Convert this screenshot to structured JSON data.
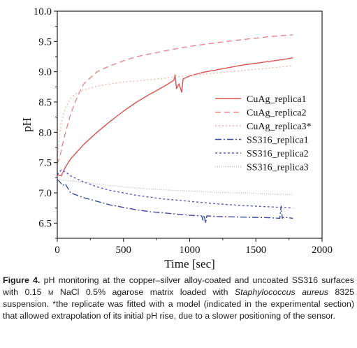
{
  "chart_data": {
    "type": "line",
    "xlabel": "Time [sec]",
    "ylabel": "pH",
    "xlim": [
      0,
      2000
    ],
    "ylim": [
      6.25,
      10.0
    ],
    "xticks": [
      0,
      500,
      1000,
      1500,
      2000
    ],
    "yticks": [
      6.5,
      7.0,
      7.5,
      8.0,
      8.5,
      9.0,
      9.5,
      10.0
    ],
    "legend_position": "right",
    "grid": false,
    "series": [
      {
        "name": "CuAg_replica1",
        "color": "#d9534f",
        "dash": "solid",
        "x": [
          0,
          30,
          60,
          100,
          150,
          200,
          300,
          400,
          500,
          600,
          700,
          800,
          860,
          880,
          890,
          900,
          920,
          940,
          950,
          1000,
          1100,
          1200,
          1300,
          1400,
          1500,
          1600,
          1700,
          1780
        ],
        "y": [
          7.3,
          7.28,
          7.42,
          7.56,
          7.68,
          7.8,
          8.0,
          8.18,
          8.35,
          8.5,
          8.63,
          8.75,
          8.83,
          8.86,
          8.95,
          8.72,
          8.8,
          8.66,
          8.88,
          8.93,
          8.99,
          9.03,
          9.07,
          9.11,
          9.14,
          9.17,
          9.2,
          9.23
        ]
      },
      {
        "name": "CuAg_replica2",
        "color": "#e8878a",
        "dash": "8,5",
        "x": [
          0,
          20,
          50,
          100,
          150,
          200,
          300,
          400,
          500,
          600,
          800,
          1000,
          1200,
          1400,
          1600,
          1780
        ],
        "y": [
          7.48,
          7.6,
          7.9,
          8.3,
          8.58,
          8.8,
          9.0,
          9.1,
          9.18,
          9.25,
          9.34,
          9.42,
          9.48,
          9.53,
          9.58,
          9.61
        ]
      },
      {
        "name": "CuAg_replica3*",
        "color": "#f2b7a8",
        "dash": "2,3",
        "x": [
          0,
          15,
          30,
          60,
          100,
          150,
          200,
          300,
          400,
          500,
          600,
          800,
          1000,
          1200,
          1400,
          1600,
          1780
        ],
        "y": [
          7.55,
          7.9,
          8.15,
          8.4,
          8.56,
          8.65,
          8.7,
          8.76,
          8.8,
          8.83,
          8.85,
          8.89,
          8.94,
          8.98,
          9.02,
          9.06,
          9.1
        ]
      },
      {
        "name": "SS316_replica1",
        "color": "#3a4a9e",
        "dash": "9,3,2,3",
        "x": [
          0,
          20,
          40,
          60,
          100,
          200,
          300,
          400,
          500,
          600,
          700,
          800,
          900,
          1000,
          1090,
          1100,
          1110,
          1120,
          1130,
          1200,
          1400,
          1600,
          1680,
          1690,
          1700,
          1710,
          1780
        ],
        "y": [
          7.22,
          7.18,
          7.12,
          7.15,
          7.0,
          6.92,
          6.86,
          6.8,
          6.76,
          6.72,
          6.69,
          6.67,
          6.65,
          6.63,
          6.62,
          6.55,
          6.63,
          6.5,
          6.62,
          6.61,
          6.6,
          6.59,
          6.58,
          6.78,
          6.58,
          6.6,
          6.58
        ]
      },
      {
        "name": "SS316_replica2",
        "color": "#5a5ac8",
        "dash": "3,3",
        "x": [
          0,
          30,
          60,
          100,
          200,
          300,
          400,
          500,
          600,
          800,
          1000,
          1200,
          1400,
          1600,
          1780
        ],
        "y": [
          7.3,
          7.38,
          7.35,
          7.28,
          7.18,
          7.1,
          7.04,
          7.0,
          6.96,
          6.9,
          6.86,
          6.82,
          6.79,
          6.77,
          6.75
        ]
      },
      {
        "name": "SS316_replica3",
        "color": "#b8b8b8",
        "dash": "1,2",
        "x": [
          0,
          100,
          200,
          400,
          600,
          800,
          1000,
          1200,
          1400,
          1600,
          1780
        ],
        "y": [
          7.22,
          7.2,
          7.17,
          7.12,
          7.08,
          7.05,
          7.03,
          7.01,
          7.0,
          6.98,
          6.97
        ]
      }
    ]
  },
  "caption": {
    "figure_label": "Figure 4.",
    "part1": " pH monitoring at the copper–silver alloy-coated and uncoated SS316 surfaces with 0.15 ",
    "unit_m": "M",
    "part2": " NaCl 0.5% agarose matrix loaded with ",
    "species": "Staphylococcus aureus",
    "part3": " 8325 suspension. *the replicate was fitted with a model (indicated in the experimental section) that allowed extrapo­lation of its initial pH rise, due to a slower positioning of the sensor."
  }
}
